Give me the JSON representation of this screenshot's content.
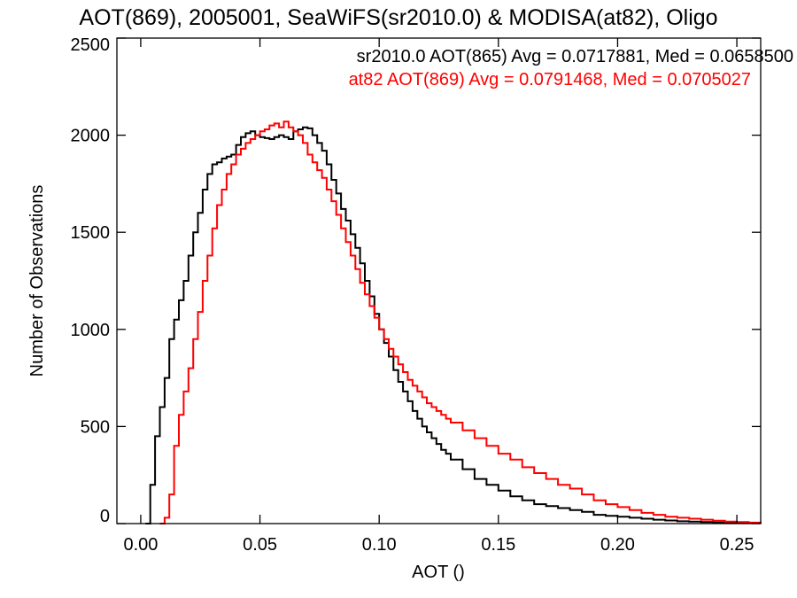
{
  "chart_data": {
    "type": "line",
    "title": "AOT(869), 2005001, SeaWiFS(sr2010.0) & MODISA(at82), Oligo",
    "xlabel": "AOT ()",
    "ylabel": "Number of Observations",
    "xlim": [
      -0.01,
      0.26
    ],
    "ylim": [
      0,
      2500
    ],
    "x_ticks": [
      "0.00",
      "0.05",
      "0.10",
      "0.15",
      "0.20",
      "0.25"
    ],
    "x_tick_values": [
      0.0,
      0.05,
      0.1,
      0.15,
      0.2,
      0.25
    ],
    "y_ticks": [
      "0",
      "500",
      "1000",
      "1500",
      "2000",
      "2500"
    ],
    "y_tick_values": [
      0,
      500,
      1000,
      1500,
      2000,
      2500
    ],
    "grid": false,
    "legend_position": "top-right",
    "series": [
      {
        "label": "sr2010.0 AOT(865) Avg = 0.0717881, Med = 0.0658500",
        "color": "#000000",
        "x": [
          0.002,
          0.004,
          0.006,
          0.008,
          0.01,
          0.012,
          0.014,
          0.016,
          0.018,
          0.02,
          0.022,
          0.024,
          0.026,
          0.028,
          0.03,
          0.032,
          0.034,
          0.036,
          0.038,
          0.04,
          0.042,
          0.044,
          0.046,
          0.048,
          0.05,
          0.052,
          0.054,
          0.056,
          0.058,
          0.06,
          0.062,
          0.064,
          0.066,
          0.068,
          0.07,
          0.072,
          0.074,
          0.076,
          0.078,
          0.08,
          0.082,
          0.084,
          0.086,
          0.088,
          0.09,
          0.092,
          0.094,
          0.096,
          0.098,
          0.1,
          0.102,
          0.104,
          0.106,
          0.108,
          0.11,
          0.112,
          0.114,
          0.116,
          0.118,
          0.12,
          0.122,
          0.124,
          0.126,
          0.128,
          0.13,
          0.135,
          0.14,
          0.145,
          0.15,
          0.155,
          0.16,
          0.165,
          0.17,
          0.175,
          0.18,
          0.185,
          0.19,
          0.195,
          0.2,
          0.205,
          0.21,
          0.215,
          0.22,
          0.225,
          0.23,
          0.235,
          0.24,
          0.245,
          0.25,
          0.255,
          0.26
        ],
        "y": [
          0,
          200,
          450,
          600,
          750,
          950,
          1050,
          1150,
          1250,
          1380,
          1500,
          1600,
          1720,
          1800,
          1850,
          1860,
          1880,
          1890,
          1900,
          1950,
          1990,
          2010,
          2020,
          2000,
          1990,
          1985,
          1980,
          1990,
          2000,
          1990,
          1980,
          2020,
          2030,
          2040,
          2035,
          2000,
          1960,
          1920,
          1850,
          1770,
          1700,
          1620,
          1560,
          1490,
          1420,
          1340,
          1250,
          1170,
          1080,
          1000,
          930,
          860,
          790,
          730,
          680,
          630,
          580,
          540,
          500,
          470,
          440,
          410,
          380,
          360,
          330,
          280,
          230,
          200,
          170,
          140,
          120,
          100,
          90,
          80,
          70,
          60,
          45,
          40,
          35,
          30,
          25,
          20,
          16,
          12,
          10,
          8,
          6,
          5,
          4,
          3,
          2
        ]
      },
      {
        "label": "at82 AOT(869) Avg = 0.0791468, Med = 0.0705027",
        "color": "#ff0000",
        "x": [
          0.008,
          0.01,
          0.012,
          0.014,
          0.016,
          0.018,
          0.02,
          0.022,
          0.024,
          0.026,
          0.028,
          0.03,
          0.032,
          0.034,
          0.036,
          0.038,
          0.04,
          0.042,
          0.044,
          0.046,
          0.048,
          0.05,
          0.052,
          0.054,
          0.056,
          0.058,
          0.06,
          0.062,
          0.064,
          0.066,
          0.068,
          0.07,
          0.072,
          0.074,
          0.076,
          0.078,
          0.08,
          0.082,
          0.084,
          0.086,
          0.088,
          0.09,
          0.092,
          0.094,
          0.096,
          0.098,
          0.1,
          0.102,
          0.104,
          0.106,
          0.108,
          0.11,
          0.112,
          0.114,
          0.116,
          0.118,
          0.12,
          0.122,
          0.124,
          0.126,
          0.128,
          0.13,
          0.135,
          0.14,
          0.145,
          0.15,
          0.155,
          0.16,
          0.165,
          0.17,
          0.175,
          0.18,
          0.185,
          0.19,
          0.195,
          0.2,
          0.205,
          0.21,
          0.215,
          0.22,
          0.225,
          0.23,
          0.235,
          0.24,
          0.245,
          0.25,
          0.255,
          0.26
        ],
        "y": [
          0,
          30,
          150,
          400,
          560,
          680,
          800,
          950,
          1090,
          1250,
          1380,
          1520,
          1640,
          1720,
          1800,
          1850,
          1900,
          1930,
          1960,
          1980,
          2000,
          2020,
          2030,
          2050,
          2060,
          2040,
          2070,
          2040,
          2020,
          2000,
          1960,
          1900,
          1860,
          1820,
          1780,
          1720,
          1660,
          1590,
          1520,
          1450,
          1380,
          1310,
          1240,
          1180,
          1120,
          1060,
          1000,
          950,
          900,
          860,
          820,
          780,
          740,
          710,
          680,
          650,
          620,
          600,
          580,
          560,
          540,
          520,
          480,
          440,
          400,
          360,
          330,
          290,
          260,
          230,
          200,
          180,
          150,
          120,
          100,
          85,
          70,
          55,
          45,
          35,
          30,
          25,
          20,
          15,
          10,
          8,
          5,
          3
        ]
      }
    ]
  }
}
